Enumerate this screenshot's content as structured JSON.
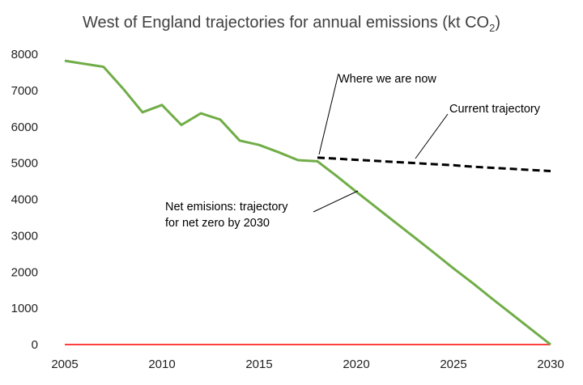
{
  "chart_data": {
    "type": "line",
    "title": "West of England trajectories for annual emissions (kt CO",
    "title_subscript": "2",
    "title_suffix": ")",
    "xlabel": "",
    "ylabel": "",
    "xlim": [
      2005,
      2030
    ],
    "ylim": [
      0,
      8000
    ],
    "x_ticks": [
      2005,
      2010,
      2015,
      2020,
      2025,
      2030
    ],
    "y_ticks": [
      0,
      1000,
      2000,
      3000,
      4000,
      5000,
      6000,
      7000,
      8000
    ],
    "grid": false,
    "series": [
      {
        "name": "",
        "color": "#70ad47",
        "style": "solid",
        "x": [
          2005,
          2007,
          2008,
          2009,
          2010,
          2011,
          2012,
          2013,
          2014,
          2015,
          2016,
          2017,
          2018,
          2019,
          2020,
          2021,
          2022,
          2023,
          2024,
          2025,
          2026,
          2027,
          2028,
          2029,
          2030
        ],
        "y": [
          7820,
          7650,
          7050,
          6400,
          6600,
          6050,
          6370,
          6200,
          5620,
          5500,
          5300,
          5080,
          5050,
          4640,
          4210,
          3790,
          3370,
          2950,
          2530,
          2100,
          1690,
          1260,
          840,
          420,
          0
        ]
      },
      {
        "name": "",
        "color": "#000000",
        "style": "dashed",
        "x": [
          2018,
          2019,
          2020,
          2021,
          2022,
          2023,
          2024,
          2025,
          2026,
          2027,
          2028,
          2029,
          2030
        ],
        "y": [
          5150,
          5120,
          5090,
          5060,
          5030,
          5000,
          4970,
          4940,
          4900,
          4870,
          4840,
          4810,
          4780
        ]
      },
      {
        "name": "",
        "color": "#ff0000",
        "style": "solid",
        "x": [
          2005,
          2030
        ],
        "y": [
          0,
          0
        ]
      }
    ],
    "annotations": [
      {
        "text": [
          "Where we are now"
        ]
      },
      {
        "text": [
          "Current trajectory"
        ]
      },
      {
        "text": [
          "Net emisions: trajectory",
          "for net zero by 2030"
        ]
      }
    ]
  }
}
